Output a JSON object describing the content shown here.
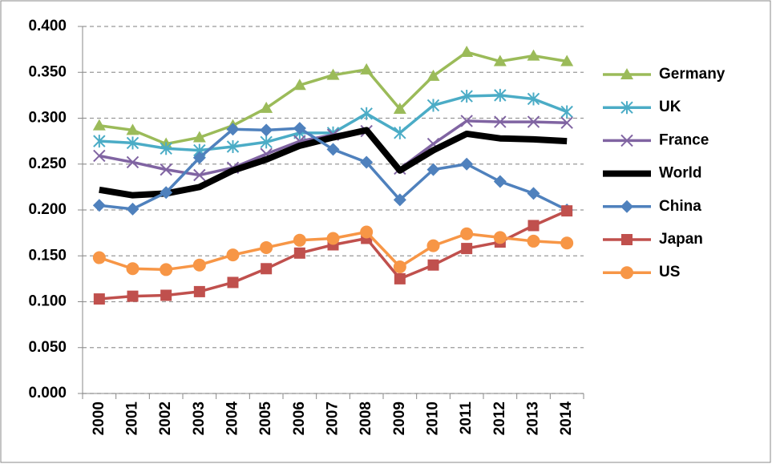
{
  "chart_data": {
    "type": "line",
    "categories": [
      "2000",
      "2001",
      "2002",
      "2003",
      "2004",
      "2005",
      "2006",
      "2007",
      "2008",
      "2009",
      "2010",
      "2011",
      "2012",
      "2013",
      "2014"
    ],
    "series": [
      {
        "name": "Germany",
        "color": "#9BBB59",
        "marker": "triangle",
        "line_width": 3.5,
        "values": [
          0.292,
          0.287,
          0.272,
          0.279,
          0.292,
          0.311,
          0.336,
          0.347,
          0.353,
          0.31,
          0.346,
          0.372,
          0.362,
          0.368,
          0.362
        ]
      },
      {
        "name": "UK",
        "color": "#4BACC6",
        "marker": "asterisk",
        "line_width": 3.5,
        "values": [
          0.275,
          0.273,
          0.267,
          0.265,
          0.269,
          0.274,
          0.284,
          0.284,
          0.305,
          0.284,
          0.314,
          0.324,
          0.325,
          0.321,
          0.307
        ]
      },
      {
        "name": "France",
        "color": "#8064A2",
        "marker": "x",
        "line_width": 3.5,
        "values": [
          0.259,
          0.252,
          0.244,
          0.238,
          0.246,
          0.261,
          0.275,
          0.282,
          0.286,
          0.245,
          0.272,
          0.297,
          0.296,
          0.296,
          0.295
        ]
      },
      {
        "name": "World",
        "color": "#000000",
        "marker": "none",
        "line_width": 8,
        "values": [
          0.222,
          0.216,
          0.218,
          0.225,
          0.243,
          0.255,
          0.27,
          0.279,
          0.287,
          0.243,
          0.265,
          0.283,
          0.278,
          0.277,
          0.275
        ]
      },
      {
        "name": "China",
        "color": "#4F81BD",
        "marker": "diamond",
        "line_width": 3.5,
        "values": [
          0.205,
          0.201,
          0.219,
          0.257,
          0.288,
          0.287,
          0.289,
          0.266,
          0.252,
          0.211,
          0.244,
          0.25,
          0.231,
          0.218,
          0.2
        ]
      },
      {
        "name": "Japan",
        "color": "#C0504D",
        "marker": "square",
        "line_width": 3.5,
        "values": [
          0.103,
          0.106,
          0.107,
          0.111,
          0.121,
          0.136,
          0.153,
          0.162,
          0.169,
          0.125,
          0.14,
          0.158,
          0.165,
          0.183,
          0.199
        ]
      },
      {
        "name": "US",
        "color": "#F79646",
        "marker": "circle",
        "line_width": 3.5,
        "values": [
          0.148,
          0.136,
          0.135,
          0.14,
          0.151,
          0.159,
          0.167,
          0.169,
          0.176,
          0.138,
          0.161,
          0.174,
          0.17,
          0.166,
          0.164
        ]
      }
    ],
    "ylim": [
      0,
      0.4
    ],
    "yticks": [
      {
        "value": 0,
        "label": "0.000"
      },
      {
        "value": 0.05,
        "label": "0.050"
      },
      {
        "value": 0.1,
        "label": "0.100"
      },
      {
        "value": 0.15,
        "label": "0.150"
      },
      {
        "value": 0.2,
        "label": "0.200"
      },
      {
        "value": 0.25,
        "label": "0.250"
      },
      {
        "value": 0.3,
        "label": "0.300"
      },
      {
        "value": 0.35,
        "label": "0.350"
      },
      {
        "value": 0.4,
        "label": "0.400"
      }
    ],
    "grid": true,
    "legend": "right"
  }
}
